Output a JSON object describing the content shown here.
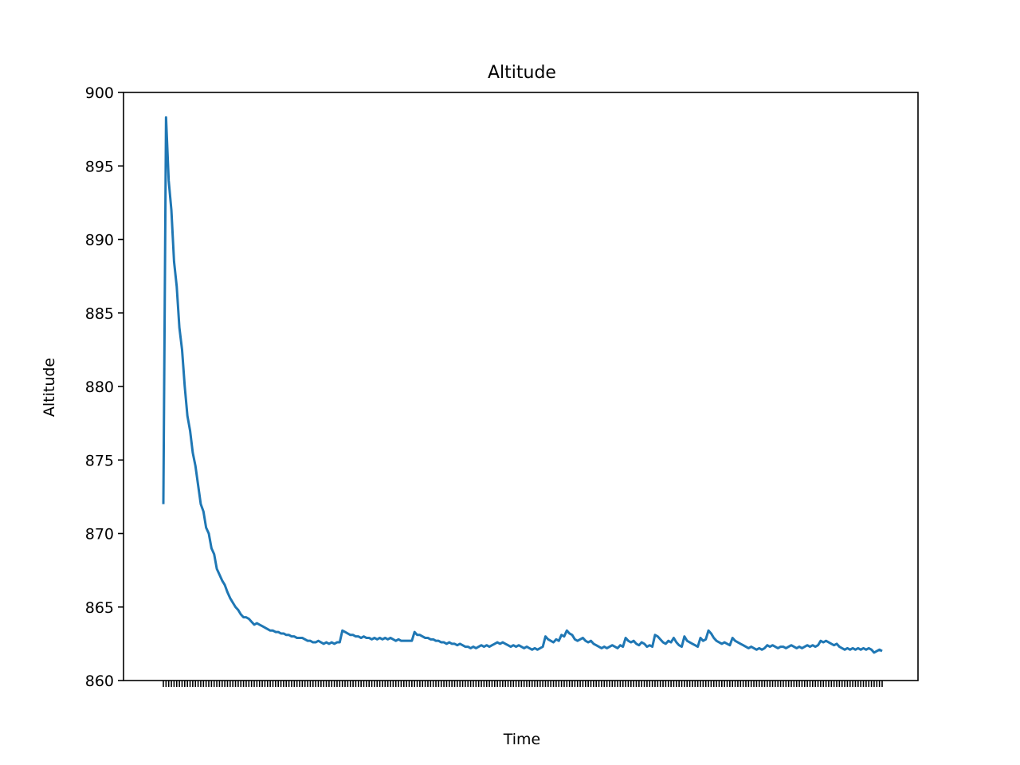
{
  "chart_data": {
    "type": "line",
    "title": "Altitude",
    "xlabel": "Time",
    "ylabel": "Altitude",
    "ylim": [
      860,
      900
    ],
    "yticks": [
      860,
      865,
      870,
      875,
      880,
      885,
      890,
      895,
      900
    ],
    "x_tick_labels_visible": false,
    "grid": false,
    "legend": "none",
    "series": [
      {
        "color": "#1f77b4",
        "values": [
          872.0,
          898.3,
          894.0,
          892.0,
          888.5,
          886.8,
          884.0,
          882.5,
          880.0,
          878.0,
          877.0,
          875.5,
          874.6,
          873.3,
          872.0,
          871.5,
          870.4,
          870.0,
          869.0,
          868.6,
          867.6,
          867.2,
          866.8,
          866.5,
          866.0,
          865.6,
          865.3,
          865.0,
          864.8,
          864.5,
          864.3,
          864.3,
          864.2,
          864.0,
          863.8,
          863.9,
          863.8,
          863.7,
          863.6,
          863.5,
          863.4,
          863.4,
          863.3,
          863.3,
          863.2,
          863.2,
          863.1,
          863.1,
          863.0,
          863.0,
          862.9,
          862.9,
          862.9,
          862.8,
          862.7,
          862.7,
          862.6,
          862.6,
          862.7,
          862.6,
          862.5,
          862.6,
          862.5,
          862.6,
          862.5,
          862.6,
          862.6,
          863.4,
          863.3,
          863.2,
          863.1,
          863.1,
          863.0,
          863.0,
          862.9,
          863.0,
          862.9,
          862.9,
          862.8,
          862.9,
          862.8,
          862.9,
          862.8,
          862.9,
          862.8,
          862.9,
          862.8,
          862.7,
          862.8,
          862.7,
          862.7,
          862.7,
          862.7,
          862.7,
          863.3,
          863.1,
          863.1,
          863.0,
          862.9,
          862.9,
          862.8,
          862.8,
          862.7,
          862.7,
          862.6,
          862.6,
          862.5,
          862.6,
          862.5,
          862.5,
          862.4,
          862.5,
          862.4,
          862.3,
          862.3,
          862.2,
          862.3,
          862.2,
          862.3,
          862.4,
          862.3,
          862.4,
          862.3,
          862.4,
          862.5,
          862.6,
          862.5,
          862.6,
          862.5,
          862.4,
          862.3,
          862.4,
          862.3,
          862.4,
          862.3,
          862.2,
          862.3,
          862.2,
          862.1,
          862.2,
          862.1,
          862.2,
          862.3,
          863.0,
          862.8,
          862.7,
          862.6,
          862.8,
          862.7,
          863.1,
          863.0,
          863.4,
          863.2,
          863.1,
          862.8,
          862.7,
          862.8,
          862.9,
          862.7,
          862.6,
          862.7,
          862.5,
          862.4,
          862.3,
          862.2,
          862.3,
          862.2,
          862.3,
          862.4,
          862.3,
          862.2,
          862.4,
          862.3,
          862.9,
          862.7,
          862.6,
          862.7,
          862.5,
          862.4,
          862.6,
          862.5,
          862.3,
          862.4,
          862.3,
          863.1,
          863.0,
          862.8,
          862.6,
          862.5,
          862.7,
          862.6,
          862.9,
          862.6,
          862.4,
          862.3,
          863.0,
          862.7,
          862.6,
          862.5,
          862.4,
          862.3,
          862.9,
          862.7,
          862.8,
          863.4,
          863.2,
          862.9,
          862.7,
          862.6,
          862.5,
          862.6,
          862.5,
          862.4,
          862.9,
          862.7,
          862.6,
          862.5,
          862.4,
          862.3,
          862.2,
          862.3,
          862.2,
          862.1,
          862.2,
          862.1,
          862.2,
          862.4,
          862.3,
          862.4,
          862.3,
          862.2,
          862.3,
          862.3,
          862.2,
          862.3,
          862.4,
          862.3,
          862.2,
          862.3,
          862.2,
          862.3,
          862.4,
          862.3,
          862.4,
          862.3,
          862.4,
          862.7,
          862.6,
          862.7,
          862.6,
          862.5,
          862.4,
          862.5,
          862.3,
          862.2,
          862.1,
          862.2,
          862.1,
          862.2,
          862.1,
          862.2,
          862.1,
          862.2,
          862.1,
          862.2,
          862.1,
          861.9,
          862.0,
          862.1,
          862.0
        ]
      }
    ]
  }
}
